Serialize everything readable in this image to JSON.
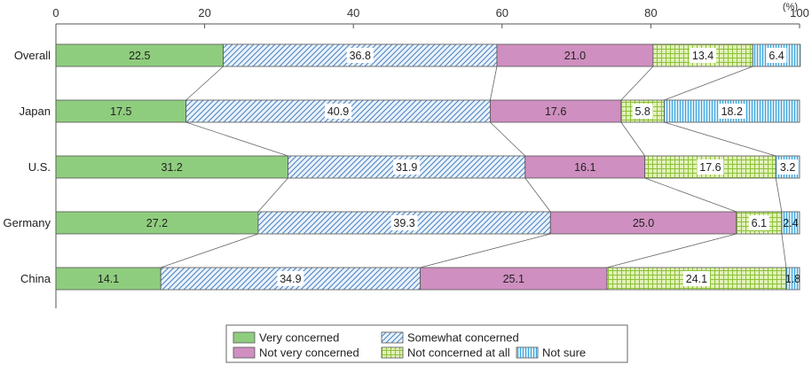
{
  "chart_data": {
    "type": "bar",
    "orientation": "horizontal",
    "stacked": true,
    "title": "",
    "unit": "(%)",
    "xlim": [
      0,
      100
    ],
    "x_ticks": [
      "0",
      "20",
      "40",
      "60",
      "80",
      "100"
    ],
    "categories": [
      "Overall",
      "Japan",
      "U.S.",
      "Germany",
      "China"
    ],
    "series": [
      {
        "name": "Very concerned",
        "color": "#8fcd7e",
        "pattern": "solid",
        "values": [
          22.5,
          17.5,
          31.2,
          27.2,
          14.1
        ]
      },
      {
        "name": "Somewhat concerned",
        "color": "#7aa9d6",
        "pattern": "diagonal",
        "values": [
          36.8,
          40.9,
          31.9,
          39.3,
          34.9
        ]
      },
      {
        "name": "Not very concerned",
        "color": "#cf8fc0",
        "pattern": "solid",
        "values": [
          21.0,
          17.6,
          16.1,
          25.0,
          25.1
        ]
      },
      {
        "name": "Not concerned at all",
        "color": "#b4d96a",
        "pattern": "grid",
        "values": [
          13.4,
          5.8,
          17.6,
          6.1,
          24.1
        ]
      },
      {
        "name": "Not sure",
        "color": "#4fb3e3",
        "pattern": "vertical",
        "values": [
          6.4,
          18.2,
          3.2,
          2.4,
          1.8
        ]
      }
    ],
    "data_labels": [
      [
        "22.5",
        "36.8",
        "21.0",
        "13.4",
        "6.4"
      ],
      [
        "17.5",
        "40.9",
        "17.6",
        "5.8",
        "18.2"
      ],
      [
        "31.2",
        "31.9",
        "16.1",
        "17.6",
        "3.2"
      ],
      [
        "27.2",
        "39.3",
        "25.0",
        "6.1",
        "2.4"
      ],
      [
        "14.1",
        "34.9",
        "25.1",
        "24.1",
        "1.8"
      ]
    ],
    "grid": false,
    "connector_lines": true,
    "legend": {
      "position": "bottom",
      "rows": [
        [
          "Very concerned",
          "Somewhat concerned"
        ],
        [
          "Not very concerned",
          "Not concerned at all",
          "Not sure"
        ]
      ]
    }
  }
}
